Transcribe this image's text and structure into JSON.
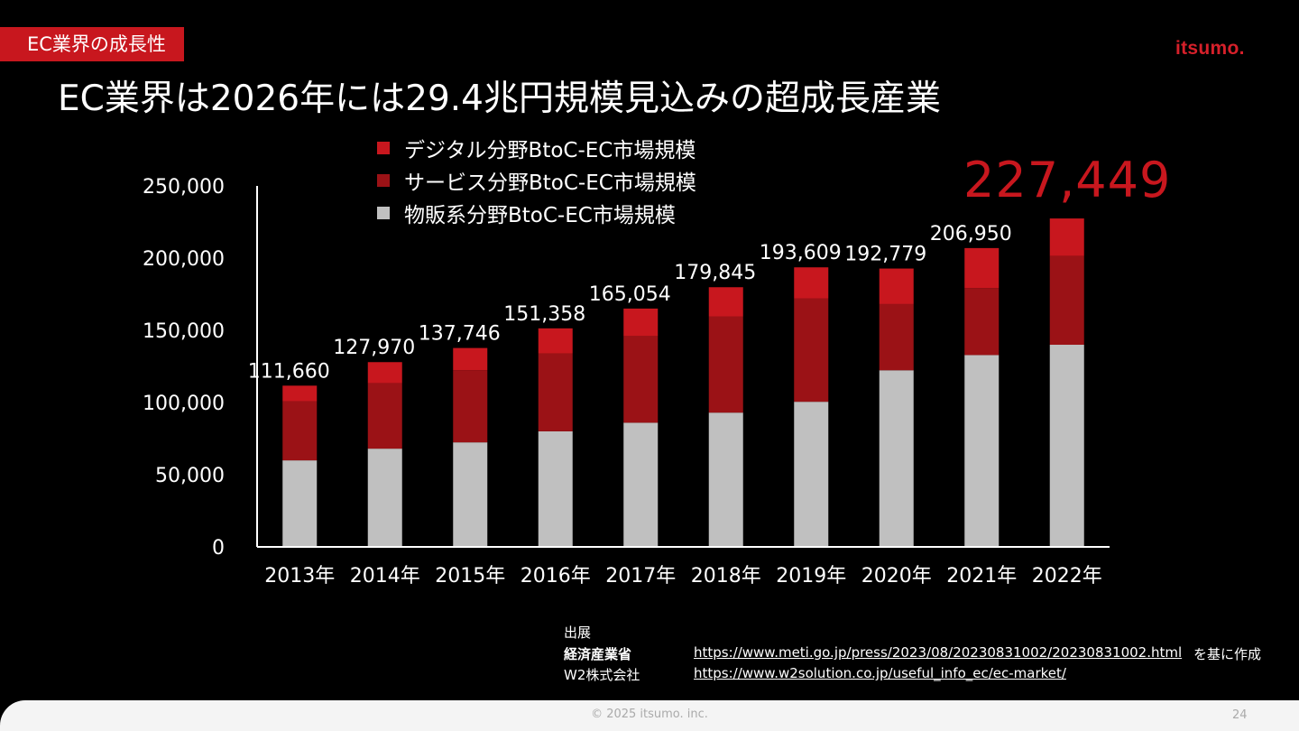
{
  "header": {
    "section_tag": "EC業界の成長性",
    "logo": "itsumo.",
    "title": "EC業界は2026年には29.4兆円規模見込みの超成長産業"
  },
  "highlight_value": "227,449",
  "chart_data": {
    "type": "bar",
    "stacked": true,
    "categories": [
      "2013年",
      "2014年",
      "2015年",
      "2016年",
      "2017年",
      "2018年",
      "2019年",
      "2020年",
      "2021年",
      "2022年"
    ],
    "series": [
      {
        "name": "物販系分野BtoC-EC市場規模",
        "color": "#c0c0c0",
        "values": [
          59931,
          68043,
          72398,
          80043,
          86008,
          92992,
          100515,
          122333,
          132865,
          139997
        ]
      },
      {
        "name": "サービス分野BtoC-EC市場規模",
        "color": "#9b1216",
        "values": [
          40978,
          45250,
          50001,
          54000,
          60000,
          66471,
          71672,
          45832,
          46424,
          61477
        ]
      },
      {
        "name": "デジタル分野BtoC-EC市場規模",
        "color": "#c8171e",
        "values": [
          10751,
          14677,
          15347,
          17315,
          19046,
          20382,
          21422,
          24614,
          27661,
          25975
        ]
      }
    ],
    "totals": [
      "111,660",
      "127,970",
      "137,746",
      "151,358",
      "165,054",
      "179,845",
      "193,609",
      "192,779",
      "206,950",
      ""
    ],
    "ylim": [
      0,
      250000
    ],
    "yticks": [
      "0",
      "50,000",
      "100,000",
      "150,000",
      "200,000",
      "250,000"
    ],
    "grid": false,
    "legend_position": "top"
  },
  "legend": [
    {
      "label": "デジタル分野BtoC-EC市場規模",
      "color": "#c8171e"
    },
    {
      "label": "サービス分野BtoC-EC市場規模",
      "color": "#9b1216"
    },
    {
      "label": "物販系分野BtoC-EC市場規模",
      "color": "#c0c0c0"
    }
  ],
  "source": {
    "heading": "出展",
    "rows": [
      {
        "org": "経済産業省",
        "url": "https://www.meti.go.jp/press/2023/08/20230831002/20230831002.html",
        "note": "を基に作成"
      },
      {
        "org": "W2株式会社",
        "url": "https://www.w2solution.co.jp/useful_info_ec/ec-market/",
        "note": ""
      }
    ]
  },
  "footer": {
    "copyright": "© 2025 itsumo. inc.",
    "page_number": "24"
  }
}
